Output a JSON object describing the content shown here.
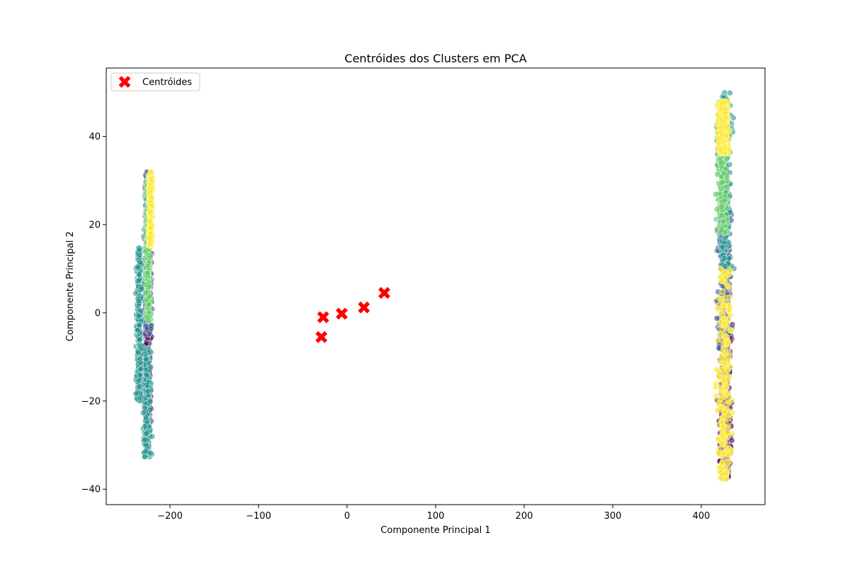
{
  "chart_data": {
    "type": "scatter",
    "title": "Centróides dos Clusters em PCA",
    "xlabel": "Componente Principal 1",
    "ylabel": "Componente Principal 2",
    "xlim": [
      -272,
      472
    ],
    "ylim": [
      -43.5,
      55.5
    ],
    "xticks": [
      -200,
      -100,
      0,
      100,
      200,
      300,
      400
    ],
    "yticks": [
      -40,
      -20,
      0,
      20,
      40
    ],
    "xtick_labels": [
      "−200",
      "−100",
      "0",
      "100",
      "200",
      "300",
      "400"
    ],
    "ytick_labels": [
      "−40",
      "−20",
      "0",
      "20",
      "40"
    ],
    "grid": false,
    "legend": {
      "placement": "top-left",
      "entries": [
        "Centróides"
      ]
    },
    "cluster_colors": [
      "#440154",
      "#3b528b",
      "#21918c",
      "#5ec962",
      "#fde725"
    ],
    "point_clouds": [
      {
        "cluster": 0,
        "x_center": -225,
        "x_spread": 3.5,
        "y_range": [
          -25,
          12
        ]
      },
      {
        "cluster": 1,
        "x_center": -225,
        "x_spread": 4,
        "y_range": [
          -5,
          32
        ]
      },
      {
        "cluster": 2,
        "x_center": -226,
        "x_spread": 4,
        "y_range": [
          -33,
          -8
        ]
      },
      {
        "cluster": 3,
        "x_center": -225,
        "x_spread": 3,
        "y_range": [
          -2,
          30
        ]
      },
      {
        "cluster": 4,
        "x_center": -222,
        "x_spread": 2,
        "y_range": [
          15,
          32
        ]
      },
      {
        "cluster": 2,
        "x_center": -235,
        "x_spread": 3,
        "y_range": [
          -20,
          15
        ]
      },
      {
        "cluster": 0,
        "x_center": 427,
        "x_spread": 7,
        "y_range": [
          -38,
          -2
        ]
      },
      {
        "cluster": 1,
        "x_center": 426,
        "x_spread": 7,
        "y_range": [
          -8,
          23
        ]
      },
      {
        "cluster": 2,
        "x_center": 427,
        "x_spread": 7,
        "y_range": [
          10,
          50
        ]
      },
      {
        "cluster": 3,
        "x_center": 424,
        "x_spread": 6,
        "y_range": [
          18,
          45
        ]
      },
      {
        "cluster": 4,
        "x_center": 425,
        "x_spread": 6,
        "y_range": [
          36,
          48
        ]
      },
      {
        "cluster": 4,
        "x_center": 426,
        "x_spread": 8,
        "y_range": [
          -38,
          10
        ]
      }
    ],
    "centroids": {
      "name": "Centróides",
      "color": "#ff0000",
      "marker": "X",
      "points": [
        {
          "x": 42,
          "y": 4.5
        },
        {
          "x": 19,
          "y": 1.2
        },
        {
          "x": -6,
          "y": -0.2
        },
        {
          "x": -27,
          "y": -1
        },
        {
          "x": -29,
          "y": -5.5
        }
      ]
    }
  }
}
